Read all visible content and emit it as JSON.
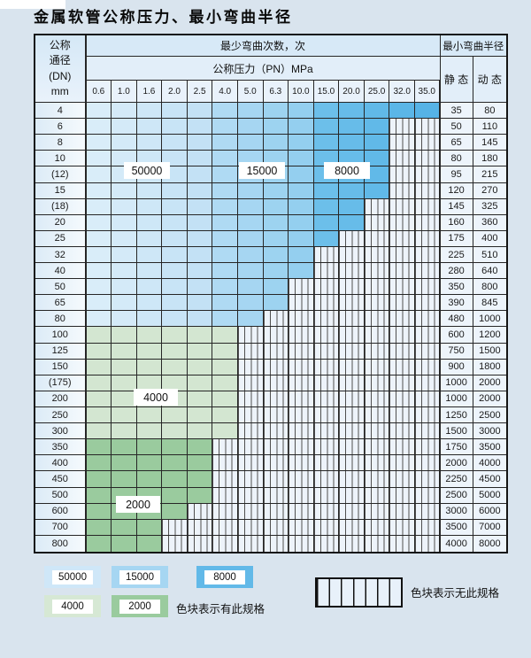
{
  "title": "金属软管公称压力、最小弯曲半径",
  "table": {
    "header": {
      "dn_lines": [
        "公称",
        "通径",
        "(DN)",
        "mm"
      ],
      "bend_cycles_label": "最少弯曲次数，次",
      "pressure_label": "公称压力（PN）MPa",
      "min_radius_label": "最小弯曲半径",
      "static_label": "静 态",
      "dynamic_label": "动 态",
      "pressure_columns": [
        "0.6",
        "1.0",
        "1.6",
        "2.0",
        "2.5",
        "4.0",
        "5.0",
        "6.3",
        "10.0",
        "15.0",
        "20.0",
        "25.0",
        "32.0",
        "35.0"
      ]
    },
    "blue_zones": [
      {
        "cycles": "50000",
        "col_start": 1,
        "col_end": 5
      },
      {
        "cycles": "15000",
        "col_start": 6,
        "col_end": 9
      },
      {
        "cycles": "8000",
        "col_start": 10,
        "col_end": 14
      }
    ],
    "rows": [
      {
        "dn": "4",
        "spec_cols": 14,
        "fill": "blue",
        "static": "35",
        "dynamic": "80"
      },
      {
        "dn": "6",
        "spec_cols": 12,
        "fill": "blue",
        "static": "50",
        "dynamic": "110"
      },
      {
        "dn": "8",
        "spec_cols": 12,
        "fill": "blue",
        "static": "65",
        "dynamic": "145"
      },
      {
        "dn": "10",
        "spec_cols": 12,
        "fill": "blue",
        "static": "80",
        "dynamic": "180"
      },
      {
        "dn": "(12)",
        "spec_cols": 12,
        "fill": "blue",
        "static": "95",
        "dynamic": "215"
      },
      {
        "dn": "15",
        "spec_cols": 12,
        "fill": "blue",
        "static": "120",
        "dynamic": "270"
      },
      {
        "dn": "(18)",
        "spec_cols": 11,
        "fill": "blue",
        "static": "145",
        "dynamic": "325"
      },
      {
        "dn": "20",
        "spec_cols": 11,
        "fill": "blue",
        "static": "160",
        "dynamic": "360"
      },
      {
        "dn": "25",
        "spec_cols": 10,
        "fill": "blue",
        "static": "175",
        "dynamic": "400"
      },
      {
        "dn": "32",
        "spec_cols": 9,
        "fill": "blue",
        "static": "225",
        "dynamic": "510"
      },
      {
        "dn": "40",
        "spec_cols": 9,
        "fill": "blue",
        "static": "280",
        "dynamic": "640"
      },
      {
        "dn": "50",
        "spec_cols": 8,
        "fill": "blue",
        "static": "350",
        "dynamic": "800"
      },
      {
        "dn": "65",
        "spec_cols": 8,
        "fill": "blue",
        "static": "390",
        "dynamic": "845"
      },
      {
        "dn": "80",
        "spec_cols": 7,
        "fill": "blue",
        "static": "480",
        "dynamic": "1000"
      },
      {
        "dn": "100",
        "spec_cols": 6,
        "fill": "green-4000",
        "static": "600",
        "dynamic": "1200"
      },
      {
        "dn": "125",
        "spec_cols": 6,
        "fill": "green-4000",
        "static": "750",
        "dynamic": "1500"
      },
      {
        "dn": "150",
        "spec_cols": 6,
        "fill": "green-4000",
        "static": "900",
        "dynamic": "1800"
      },
      {
        "dn": "(175)",
        "spec_cols": 6,
        "fill": "green-4000",
        "static": "1000",
        "dynamic": "2000"
      },
      {
        "dn": "200",
        "spec_cols": 6,
        "fill": "green-4000",
        "static": "1000",
        "dynamic": "2000"
      },
      {
        "dn": "250",
        "spec_cols": 6,
        "fill": "green-4000",
        "static": "1250",
        "dynamic": "2500"
      },
      {
        "dn": "300",
        "spec_cols": 6,
        "fill": "green-4000",
        "static": "1500",
        "dynamic": "3000"
      },
      {
        "dn": "350",
        "spec_cols": 5,
        "fill": "green-2000",
        "static": "1750",
        "dynamic": "3500"
      },
      {
        "dn": "400",
        "spec_cols": 5,
        "fill": "green-2000",
        "static": "2000",
        "dynamic": "4000"
      },
      {
        "dn": "450",
        "spec_cols": 5,
        "fill": "green-2000",
        "static": "2250",
        "dynamic": "4500"
      },
      {
        "dn": "500",
        "spec_cols": 5,
        "fill": "green-2000",
        "static": "2500",
        "dynamic": "5000"
      },
      {
        "dn": "600",
        "spec_cols": 4,
        "fill": "green-2000",
        "static": "3000",
        "dynamic": "6000"
      },
      {
        "dn": "700",
        "spec_cols": 3,
        "fill": "green-2000",
        "static": "3500",
        "dynamic": "7000"
      },
      {
        "dn": "800",
        "spec_cols": 3,
        "fill": "green-2000",
        "static": "4000",
        "dynamic": "8000"
      }
    ],
    "annotations": [
      "50000",
      "15000",
      "8000",
      "4000",
      "2000"
    ]
  },
  "legend": {
    "swatches": [
      {
        "label": "50000",
        "color": "#cfe7f8"
      },
      {
        "label": "15000",
        "color": "#a6d6f2"
      },
      {
        "label": "8000",
        "color": "#62b9e8"
      },
      {
        "label": "4000",
        "color": "#d6e8d4"
      },
      {
        "label": "2000",
        "color": "#9acb9e"
      }
    ],
    "has_spec_note": "色块表示有此规格",
    "no_spec_note": "色块表示无此规格"
  },
  "colors": {
    "page_bg": "#d9e4ee",
    "grid": "#262626",
    "blue_50000": [
      "#dceef9",
      "#c0e0f5"
    ],
    "blue_15000": [
      "#b3dcf4",
      "#90cdee"
    ],
    "blue_8000": [
      "#6fc0ea",
      "#53b1e5"
    ],
    "green_4000": "#d3e6d1",
    "green_2000": "#9acb9e"
  }
}
